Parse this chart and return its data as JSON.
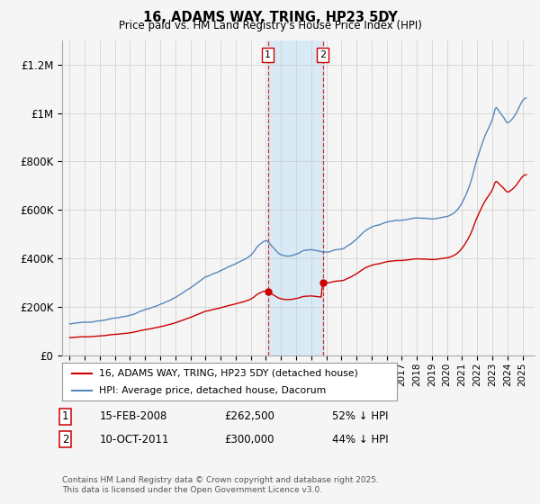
{
  "title": "16, ADAMS WAY, TRING, HP23 5DY",
  "subtitle": "Price paid vs. HM Land Registry's House Price Index (HPI)",
  "footer": "Contains HM Land Registry data © Crown copyright and database right 2025.\nThis data is licensed under the Open Government Licence v3.0.",
  "legend_line1": "16, ADAMS WAY, TRING, HP23 5DY (detached house)",
  "legend_line2": "HPI: Average price, detached house, Dacorum",
  "transaction1_date": "15-FEB-2008",
  "transaction1_price": "£262,500",
  "transaction1_hpi": "52% ↓ HPI",
  "transaction1_x": 2008.12,
  "transaction1_y": 262500,
  "transaction2_date": "10-OCT-2011",
  "transaction2_price": "£300,000",
  "transaction2_hpi": "44% ↓ HPI",
  "transaction2_x": 2011.78,
  "transaction2_y": 300000,
  "ylim": [
    0,
    1300000
  ],
  "xlim": [
    1994.5,
    2025.8
  ],
  "yticks": [
    0,
    200000,
    400000,
    600000,
    800000,
    1000000,
    1200000
  ],
  "ytick_labels": [
    "£0",
    "£200K",
    "£400K",
    "£600K",
    "£800K",
    "£1M",
    "£1.2M"
  ],
  "line_color_red": "#cc0000",
  "line_color_blue": "#5588bb",
  "shade_color": "#d8eaf5",
  "vline_color": "#cc0000",
  "background_color": "#f5f5f5",
  "grid_color": "#cccccc"
}
